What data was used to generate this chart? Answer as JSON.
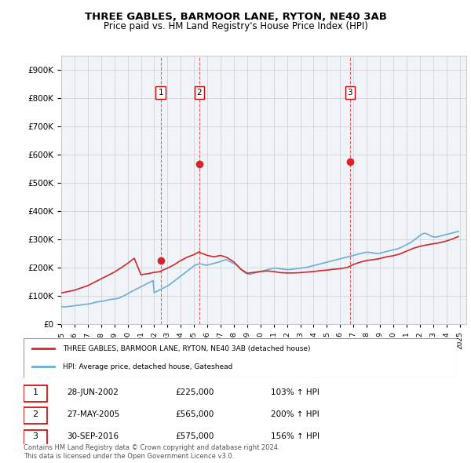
{
  "title": "THREE GABLES, BARMOOR LANE, RYTON, NE40 3AB",
  "subtitle": "Price paid vs. HM Land Registry's House Price Index (HPI)",
  "ylabel_prefix": "£",
  "yticks": [
    0,
    100000,
    200000,
    300000,
    400000,
    500000,
    600000,
    700000,
    800000,
    900000
  ],
  "ytick_labels": [
    "£0",
    "£100K",
    "£200K",
    "£300K",
    "£400K",
    "£500K",
    "£600K",
    "£700K",
    "£800K",
    "£900K"
  ],
  "ylim": [
    0,
    950000
  ],
  "xlim_start": 1995.0,
  "xlim_end": 2025.5,
  "hpi_color": "#6baed6",
  "price_color": "#d62728",
  "sale_color": "#d62728",
  "vline_color": "#d62728",
  "grid_color": "#cccccc",
  "bg_color": "#ffffff",
  "plot_bg_color": "#f0f4f8",
  "legend_label_red": "THREE GABLES, BARMOOR LANE, RYTON, NE40 3AB (detached house)",
  "legend_label_blue": "HPI: Average price, detached house, Gateshead",
  "sales": [
    {
      "num": 1,
      "date": "28-JUN-2002",
      "year": 2002.49,
      "price": 225000,
      "pct": "103%",
      "arrow": "↑"
    },
    {
      "num": 2,
      "date": "27-MAY-2005",
      "year": 2005.4,
      "price": 565000,
      "pct": "200%",
      "arrow": "↑"
    },
    {
      "num": 3,
      "date": "30-SEP-2016",
      "year": 2016.75,
      "price": 575000,
      "pct": "156%",
      "arrow": "↑"
    }
  ],
  "footnote1": "Contains HM Land Registry data © Crown copyright and database right 2024.",
  "footnote2": "This data is licensed under the Open Government Licence v3.0.",
  "hpi_data": {
    "years": [
      1995.0,
      1995.083,
      1995.167,
      1995.25,
      1995.333,
      1995.417,
      1995.5,
      1995.583,
      1995.667,
      1995.75,
      1995.833,
      1995.917,
      1996.0,
      1996.083,
      1996.167,
      1996.25,
      1996.333,
      1996.417,
      1996.5,
      1996.583,
      1996.667,
      1996.75,
      1996.833,
      1996.917,
      1997.0,
      1997.083,
      1997.167,
      1997.25,
      1997.333,
      1997.417,
      1997.5,
      1997.583,
      1997.667,
      1997.75,
      1997.833,
      1997.917,
      1998.0,
      1998.083,
      1998.167,
      1998.25,
      1998.333,
      1998.417,
      1998.5,
      1998.583,
      1998.667,
      1998.75,
      1998.833,
      1998.917,
      1999.0,
      1999.083,
      1999.167,
      1999.25,
      1999.333,
      1999.417,
      1999.5,
      1999.583,
      1999.667,
      1999.75,
      1999.833,
      1999.917,
      2000.0,
      2000.083,
      2000.167,
      2000.25,
      2000.333,
      2000.417,
      2000.5,
      2000.583,
      2000.667,
      2000.75,
      2000.833,
      2000.917,
      2001.0,
      2001.083,
      2001.167,
      2001.25,
      2001.333,
      2001.417,
      2001.5,
      2001.583,
      2001.667,
      2001.75,
      2001.833,
      2001.917,
      2002.0,
      2002.083,
      2002.167,
      2002.25,
      2002.333,
      2002.417,
      2002.5,
      2002.583,
      2002.667,
      2002.75,
      2002.833,
      2002.917,
      2003.0,
      2003.083,
      2003.167,
      2003.25,
      2003.333,
      2003.417,
      2003.5,
      2003.583,
      2003.667,
      2003.75,
      2003.833,
      2003.917,
      2004.0,
      2004.083,
      2004.167,
      2004.25,
      2004.333,
      2004.417,
      2004.5,
      2004.583,
      2004.667,
      2004.75,
      2004.833,
      2004.917,
      2005.0,
      2005.083,
      2005.167,
      2005.25,
      2005.333,
      2005.417,
      2005.5,
      2005.583,
      2005.667,
      2005.75,
      2005.833,
      2005.917,
      2006.0,
      2006.083,
      2006.167,
      2006.25,
      2006.333,
      2006.417,
      2006.5,
      2006.583,
      2006.667,
      2006.75,
      2006.833,
      2006.917,
      2007.0,
      2007.083,
      2007.167,
      2007.25,
      2007.333,
      2007.417,
      2007.5,
      2007.583,
      2007.667,
      2007.75,
      2007.833,
      2007.917,
      2008.0,
      2008.083,
      2008.167,
      2008.25,
      2008.333,
      2008.417,
      2008.5,
      2008.583,
      2008.667,
      2008.75,
      2008.833,
      2008.917,
      2009.0,
      2009.083,
      2009.167,
      2009.25,
      2009.333,
      2009.417,
      2009.5,
      2009.583,
      2009.667,
      2009.75,
      2009.833,
      2009.917,
      2010.0,
      2010.083,
      2010.167,
      2010.25,
      2010.333,
      2010.417,
      2010.5,
      2010.583,
      2010.667,
      2010.75,
      2010.833,
      2010.917,
      2011.0,
      2011.083,
      2011.167,
      2011.25,
      2011.333,
      2011.417,
      2011.5,
      2011.583,
      2011.667,
      2011.75,
      2011.833,
      2011.917,
      2012.0,
      2012.083,
      2012.167,
      2012.25,
      2012.333,
      2012.417,
      2012.5,
      2012.583,
      2012.667,
      2012.75,
      2012.833,
      2012.917,
      2013.0,
      2013.083,
      2013.167,
      2013.25,
      2013.333,
      2013.417,
      2013.5,
      2013.583,
      2013.667,
      2013.75,
      2013.833,
      2013.917,
      2014.0,
      2014.083,
      2014.167,
      2014.25,
      2014.333,
      2014.417,
      2014.5,
      2014.583,
      2014.667,
      2014.75,
      2014.833,
      2014.917,
      2015.0,
      2015.083,
      2015.167,
      2015.25,
      2015.333,
      2015.417,
      2015.5,
      2015.583,
      2015.667,
      2015.75,
      2015.833,
      2015.917,
      2016.0,
      2016.083,
      2016.167,
      2016.25,
      2016.333,
      2016.417,
      2016.5,
      2016.583,
      2016.667,
      2016.75,
      2016.833,
      2016.917,
      2017.0,
      2017.083,
      2017.167,
      2017.25,
      2017.333,
      2017.417,
      2017.5,
      2017.583,
      2017.667,
      2017.75,
      2017.833,
      2017.917,
      2018.0,
      2018.083,
      2018.167,
      2018.25,
      2018.333,
      2018.417,
      2018.5,
      2018.583,
      2018.667,
      2018.75,
      2018.833,
      2018.917,
      2019.0,
      2019.083,
      2019.167,
      2019.25,
      2019.333,
      2019.417,
      2019.5,
      2019.583,
      2019.667,
      2019.75,
      2019.833,
      2019.917,
      2020.0,
      2020.083,
      2020.167,
      2020.25,
      2020.333,
      2020.417,
      2020.5,
      2020.583,
      2020.667,
      2020.75,
      2020.833,
      2020.917,
      2021.0,
      2021.083,
      2021.167,
      2021.25,
      2021.333,
      2021.417,
      2021.5,
      2021.583,
      2021.667,
      2021.75,
      2021.833,
      2021.917,
      2022.0,
      2022.083,
      2022.167,
      2022.25,
      2022.333,
      2022.417,
      2022.5,
      2022.583,
      2022.667,
      2022.75,
      2022.833,
      2022.917,
      2023.0,
      2023.083,
      2023.167,
      2023.25,
      2023.333,
      2023.417,
      2023.5,
      2023.583,
      2023.667,
      2023.75,
      2023.833,
      2023.917,
      2024.0,
      2024.083,
      2024.167,
      2024.25,
      2024.333,
      2024.417,
      2024.5,
      2024.583,
      2024.667,
      2024.75,
      2024.833,
      2024.917
    ],
    "values": [
      62000,
      61500,
      61000,
      60500,
      61000,
      61500,
      62000,
      62500,
      63000,
      63500,
      64000,
      64500,
      65000,
      65500,
      66000,
      66500,
      67000,
      67500,
      68000,
      68500,
      69000,
      69500,
      70000,
      70500,
      71000,
      71500,
      72000,
      73000,
      74000,
      75000,
      76000,
      77000,
      78000,
      79000,
      79500,
      80000,
      80500,
      81000,
      81500,
      82000,
      83000,
      84000,
      85000,
      86000,
      87000,
      87500,
      88000,
      88500,
      89000,
      89500,
      90000,
      91000,
      92000,
      93500,
      95000,
      97000,
      99000,
      101000,
      103000,
      105000,
      107000,
      109500,
      112000,
      114000,
      116000,
      118000,
      120000,
      122000,
      124000,
      126000,
      128000,
      130000,
      132000,
      134000,
      136000,
      138000,
      140000,
      142000,
      144000,
      146000,
      148000,
      150000,
      152000,
      154000,
      111000,
      113000,
      115000,
      117000,
      119000,
      121000,
      123000,
      125000,
      127000,
      129000,
      131000,
      133000,
      135000,
      137000,
      140000,
      143000,
      146000,
      149000,
      152000,
      155000,
      158000,
      161000,
      164000,
      167000,
      170000,
      173000,
      176000,
      179000,
      182000,
      185000,
      188000,
      191000,
      194000,
      197000,
      200000,
      203000,
      206000,
      208000,
      210000,
      211000,
      212000,
      213000,
      213000,
      212000,
      211000,
      210000,
      209000,
      208000,
      209000,
      210000,
      211000,
      212000,
      213000,
      214000,
      215000,
      216000,
      217000,
      218000,
      219000,
      220000,
      222000,
      223000,
      225000,
      226000,
      227000,
      228000,
      226000,
      224000,
      222000,
      220000,
      218000,
      216000,
      214000,
      212000,
      210000,
      208000,
      204000,
      200000,
      196000,
      192000,
      188000,
      185000,
      182000,
      180000,
      178000,
      177000,
      176000,
      177000,
      178000,
      179000,
      180000,
      181000,
      182000,
      183000,
      184000,
      185000,
      186000,
      187000,
      188000,
      189000,
      190000,
      191000,
      192000,
      193000,
      194000,
      195000,
      196000,
      197000,
      198000,
      198000,
      198000,
      197000,
      197000,
      196000,
      196000,
      195000,
      195000,
      194000,
      194000,
      193000,
      193000,
      193000,
      193000,
      193000,
      194000,
      194000,
      195000,
      195000,
      196000,
      196000,
      197000,
      197000,
      198000,
      198000,
      199000,
      199000,
      200000,
      200000,
      201000,
      202000,
      203000,
      204000,
      205000,
      206000,
      207000,
      208000,
      209000,
      210000,
      211000,
      212000,
      213000,
      214000,
      215000,
      216000,
      217000,
      218000,
      219000,
      220000,
      221000,
      222000,
      223000,
      224000,
      225000,
      226000,
      227000,
      228000,
      229000,
      230000,
      231000,
      232000,
      233000,
      234000,
      235000,
      236000,
      237000,
      238000,
      239000,
      240000,
      241000,
      242000,
      243000,
      244000,
      245000,
      246000,
      247000,
      248000,
      249000,
      250000,
      251000,
      252000,
      253000,
      254000,
      254000,
      254000,
      254000,
      253000,
      253000,
      252000,
      252000,
      251000,
      251000,
      250000,
      250000,
      250000,
      251000,
      252000,
      253000,
      254000,
      255000,
      256000,
      257000,
      258000,
      259000,
      260000,
      261000,
      262000,
      263000,
      263000,
      264000,
      265000,
      266000,
      268000,
      270000,
      271000,
      273000,
      275000,
      277000,
      279000,
      281000,
      283000,
      285000,
      287000,
      289000,
      292000,
      295000,
      298000,
      301000,
      304000,
      307000,
      310000,
      313000,
      316000,
      318000,
      320000,
      321000,
      321000,
      320000,
      318000,
      316000,
      314000,
      312000,
      310000,
      309000,
      308000,
      308000,
      308000,
      309000,
      310000,
      311000,
      312000,
      313000,
      314000,
      315000,
      316000,
      317000,
      318000,
      319000,
      320000,
      321000,
      322000,
      323000,
      324000,
      325000,
      326000,
      327000,
      328000
    ]
  },
  "hpi_indexed_data": {
    "years": [
      1995.0,
      1995.5,
      1996.0,
      1996.5,
      1997.0,
      1997.5,
      1998.0,
      1998.5,
      1999.0,
      1999.5,
      2000.0,
      2000.5,
      2001.0,
      2001.5,
      2002.0,
      2002.49,
      2002.5,
      2003.0,
      2003.5,
      2004.0,
      2004.5,
      2005.0,
      2005.4,
      2005.5,
      2006.0,
      2006.5,
      2007.0,
      2007.5,
      2008.0,
      2008.5,
      2009.0,
      2009.5,
      2010.0,
      2010.5,
      2011.0,
      2011.5,
      2012.0,
      2012.5,
      2013.0,
      2013.5,
      2014.0,
      2014.5,
      2015.0,
      2015.5,
      2016.0,
      2016.5,
      2016.75,
      2017.0,
      2017.5,
      2018.0,
      2018.5,
      2019.0,
      2019.5,
      2020.0,
      2020.5,
      2021.0,
      2021.5,
      2022.0,
      2022.5,
      2023.0,
      2023.5,
      2024.0,
      2024.5,
      2024.9
    ],
    "values": [
      110000,
      115000,
      120000,
      128000,
      136000,
      148000,
      160000,
      172000,
      184000,
      199000,
      215000,
      233000,
      175000,
      178000,
      183000,
      186000,
      188000,
      198000,
      210000,
      225000,
      237000,
      246000,
      256000,
      252000,
      243000,
      238000,
      243000,
      235000,
      220000,
      195000,
      180000,
      183000,
      186000,
      188000,
      186000,
      182000,
      181000,
      181000,
      182000,
      184000,
      186000,
      189000,
      191000,
      194000,
      196000,
      200000,
      205000,
      211000,
      219000,
      225000,
      228000,
      232000,
      238000,
      242000,
      248000,
      258000,
      268000,
      275000,
      280000,
      284000,
      288000,
      294000,
      302000,
      310000
    ]
  }
}
